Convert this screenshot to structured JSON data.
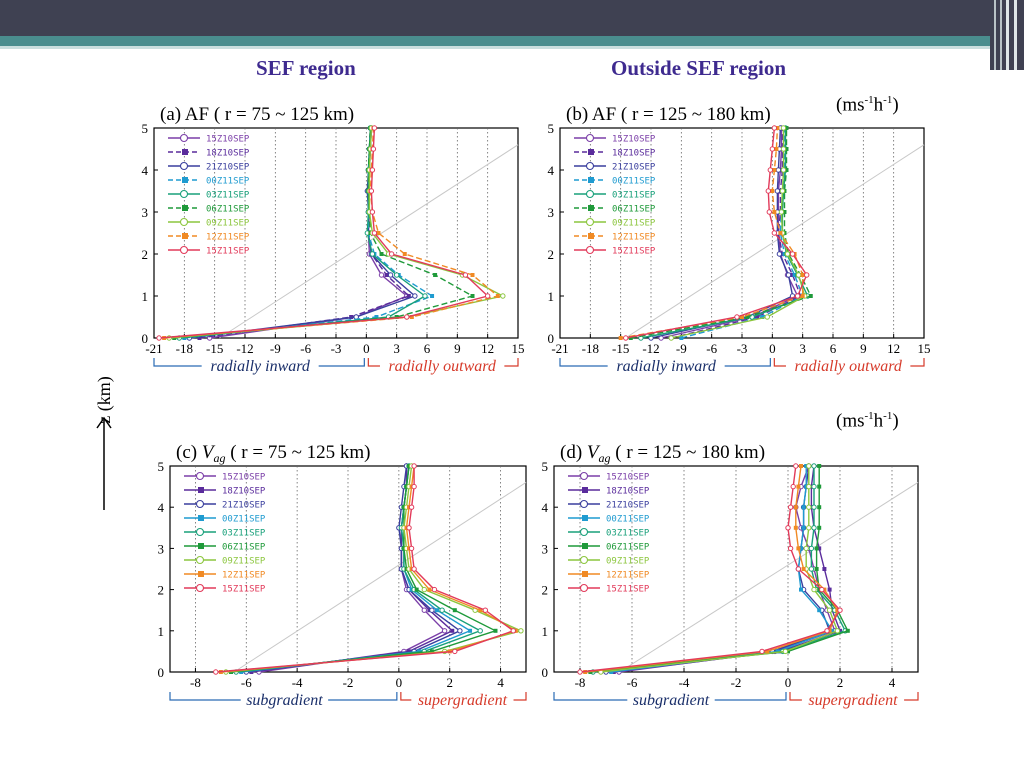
{
  "slide": {
    "heading_left": "SEF  region",
    "heading_right": "Outside SEF region",
    "unit_label": "(ms",
    "unit_exp1": "-1",
    "unit_mid": "h",
    "unit_exp2": "-1",
    "unit_close": ")",
    "z_axis_label": "z (km)"
  },
  "colors": {
    "topbar": "#3f4152",
    "accent": "#4a8d8e",
    "heading": "#3e2a8f",
    "inward_bracket": "#2a6bb5",
    "outward_bracket": "#d63a2a"
  },
  "chart_data": [
    {
      "id": "a",
      "type": "line",
      "title_prefix": "(a) AF ( r = 75 ~ 125 km)",
      "xlim": [
        -21,
        15
      ],
      "ylim": [
        0,
        5
      ],
      "xticks": [
        "-21",
        "-18",
        "-15",
        "-12",
        "-9",
        "-6",
        "-3",
        "0",
        "3",
        "6",
        "9",
        "12",
        "15"
      ],
      "yticks": [
        "0",
        "1",
        "2",
        "3",
        "4",
        "5"
      ],
      "bracket_left": "radially inward",
      "bracket_right": "radially outward",
      "y": [
        0,
        0.5,
        1,
        1.5,
        2,
        2.5,
        3,
        3.5,
        4,
        4.5,
        5
      ],
      "series": [
        {
          "name": "15Z10SEP",
          "color": "#7b3fa8",
          "marker": "circle-open",
          "dash": false,
          "x": [
            -15.5,
            -1,
            4,
            1.5,
            0.3,
            0.2,
            0.3,
            0.2,
            0.3,
            0.4,
            0.5
          ]
        },
        {
          "name": "18Z10SEP",
          "color": "#5a2c9c",
          "marker": "square",
          "dash": true,
          "x": [
            -16.5,
            -1.5,
            4.2,
            2,
            0.5,
            0.2,
            0.2,
            0.2,
            0.3,
            0.4,
            0.5
          ]
        },
        {
          "name": "21Z10SEP",
          "color": "#3a3f9e",
          "marker": "circle-open",
          "dash": false,
          "x": [
            -17.5,
            -1,
            4.8,
            2.4,
            0.5,
            0.2,
            0.2,
            0.1,
            0.2,
            0.3,
            0.4
          ]
        },
        {
          "name": "00Z11SEP",
          "color": "#1f9bd0",
          "marker": "square",
          "dash": true,
          "x": [
            -18,
            1,
            6.5,
            3.2,
            0.8,
            0.2,
            0.2,
            0.2,
            0.2,
            0.3,
            0.4
          ]
        },
        {
          "name": "03Z11SEP",
          "color": "#18a07a",
          "marker": "circle-open",
          "dash": false,
          "x": [
            -18.5,
            2.2,
            5.8,
            3,
            0.6,
            0.1,
            0.2,
            0.2,
            0.2,
            0.3,
            0.4
          ]
        },
        {
          "name": "06Z11SEP",
          "color": "#1f9a3a",
          "marker": "square",
          "dash": true,
          "x": [
            -19,
            3,
            10.5,
            6.8,
            1.5,
            0.4,
            0.3,
            0.2,
            0.2,
            0.3,
            0.4
          ]
        },
        {
          "name": "09Z11SEP",
          "color": "#8cc63e",
          "marker": "circle-open",
          "dash": false,
          "x": [
            -19.5,
            4,
            13.5,
            9.5,
            2.2,
            0.6,
            0.3,
            0.3,
            0.3,
            0.4,
            0.5
          ]
        },
        {
          "name": "12Z11SEP",
          "color": "#f08a24",
          "marker": "square",
          "dash": true,
          "x": [
            -20,
            4.5,
            13,
            10.5,
            3.8,
            1.2,
            0.6,
            0.4,
            0.5,
            0.6,
            0.7
          ]
        },
        {
          "name": "15Z11SEP",
          "color": "#e23a5a",
          "marker": "circle-open",
          "dash": false,
          "x": [
            -20.5,
            4,
            12,
            9.8,
            2.5,
            0.8,
            0.6,
            0.5,
            0.6,
            0.7,
            0.8
          ]
        }
      ]
    },
    {
      "id": "b",
      "type": "line",
      "title_prefix": "(b) AF ( r = 125 ~ 180 km)",
      "xlim": [
        -21,
        15
      ],
      "ylim": [
        0,
        5
      ],
      "xticks": [
        "-21",
        "-18",
        "-15",
        "-12",
        "-9",
        "-6",
        "-3",
        "0",
        "3",
        "6",
        "9",
        "12",
        "15"
      ],
      "yticks": [
        "0",
        "1",
        "2",
        "3",
        "4",
        "5"
      ],
      "bracket_left": "radially inward",
      "bracket_right": "radially outward",
      "y": [
        0,
        0.5,
        1,
        1.5,
        2,
        2.5,
        3,
        3.5,
        4,
        4.5,
        5
      ],
      "series": [
        {
          "name": "15Z10SEP",
          "color": "#7b3fa8",
          "marker": "circle-open",
          "dash": false,
          "x": [
            -11,
            -2,
            2.5,
            1.5,
            0.8,
            0.6,
            0.6,
            0.6,
            0.8,
            0.9,
            0.9
          ]
        },
        {
          "name": "18Z10SEP",
          "color": "#5a2c9c",
          "marker": "square",
          "dash": true,
          "x": [
            -10,
            -1.5,
            2.8,
            2,
            1,
            0.6,
            0.8,
            0.8,
            1,
            1,
            1
          ]
        },
        {
          "name": "21Z10SEP",
          "color": "#3a3f9e",
          "marker": "circle-open",
          "dash": false,
          "x": [
            -12,
            -2.5,
            2,
            1.6,
            0.7,
            0.5,
            0.5,
            0.5,
            0.6,
            0.7,
            0.8
          ]
        },
        {
          "name": "00Z11SEP",
          "color": "#1f9bd0",
          "marker": "square",
          "dash": true,
          "x": [
            -9,
            -1,
            3,
            2.2,
            1.2,
            0.8,
            0.9,
            1,
            1.2,
            1.2,
            1.2
          ]
        },
        {
          "name": "03Z11SEP",
          "color": "#18a07a",
          "marker": "circle-open",
          "dash": false,
          "x": [
            -13,
            -2,
            3.5,
            2.5,
            1.4,
            1,
            1,
            1.1,
            1.3,
            1.3,
            1.3
          ]
        },
        {
          "name": "06Z11SEP",
          "color": "#1f9a3a",
          "marker": "square",
          "dash": true,
          "x": [
            -14,
            -2.5,
            3.8,
            2.8,
            1.6,
            1.2,
            1.2,
            1.2,
            1.4,
            1.4,
            1.4
          ]
        },
        {
          "name": "09Z11SEP",
          "color": "#8cc63e",
          "marker": "circle-open",
          "dash": false,
          "x": [
            -10,
            -0.5,
            3.2,
            2.6,
            1.5,
            1,
            0.9,
            1,
            1.1,
            1.1,
            1.1
          ]
        },
        {
          "name": "12Z11SEP",
          "color": "#f08a24",
          "marker": "square",
          "dash": true,
          "x": [
            -15,
            -3,
            3,
            3,
            2.2,
            0.8,
            0.2,
            0,
            0.2,
            0.4,
            0.5
          ]
        },
        {
          "name": "15Z11SEP",
          "color": "#e23a5a",
          "marker": "circle-open",
          "dash": false,
          "x": [
            -14.5,
            -3.5,
            2.5,
            3.4,
            2,
            0.2,
            -0.3,
            -0.4,
            -0.2,
            0,
            0.2
          ]
        }
      ]
    },
    {
      "id": "c",
      "type": "line",
      "title_prefix": "(c) ",
      "title_var": "V",
      "title_sub": "ag",
      "title_suffix": "  ( r = 75 ~ 125 km)",
      "xlim": [
        -9,
        5
      ],
      "ylim": [
        0,
        5
      ],
      "xticks": [
        "-8",
        "-6",
        "-4",
        "-2",
        "0",
        "2",
        "4"
      ],
      "xtick_values": [
        -8,
        -6,
        -4,
        -2,
        0,
        2,
        4
      ],
      "yticks": [
        "0",
        "1",
        "2",
        "3",
        "4",
        "5"
      ],
      "bracket_left": "subgradient",
      "bracket_right": "supergradient",
      "y": [
        0,
        0.5,
        1,
        1.5,
        2,
        2.5,
        3,
        3.5,
        4,
        4.5,
        5
      ],
      "series": [
        {
          "name": "15Z10SEP",
          "color": "#7b3fa8",
          "marker": "circle-open",
          "dash": false,
          "x": [
            -5.5,
            0.2,
            1.8,
            1,
            0.3,
            0.1,
            0.1,
            0.1,
            0.2,
            0.3,
            0.3
          ]
        },
        {
          "name": "18Z10SEP",
          "color": "#5a2c9c",
          "marker": "square",
          "dash": false,
          "x": [
            -5.8,
            0.4,
            2.1,
            1.2,
            0.4,
            0.1,
            0.1,
            0.1,
            0.2,
            0.3,
            0.3
          ]
        },
        {
          "name": "21Z10SEP",
          "color": "#3a3f9e",
          "marker": "circle-open",
          "dash": false,
          "x": [
            -6,
            0.6,
            2.4,
            1.3,
            0.4,
            0.1,
            0.1,
            0,
            0.1,
            0.2,
            0.3
          ]
        },
        {
          "name": "00Z11SEP",
          "color": "#1f9bd0",
          "marker": "square",
          "dash": false,
          "x": [
            -6.2,
            0.8,
            2.8,
            1.5,
            0.5,
            0.2,
            0.2,
            0.1,
            0.2,
            0.3,
            0.4
          ]
        },
        {
          "name": "03Z11SEP",
          "color": "#18a07a",
          "marker": "circle-open",
          "dash": false,
          "x": [
            -6.4,
            1,
            3.2,
            1.7,
            0.6,
            0.2,
            0.2,
            0.1,
            0.2,
            0.3,
            0.4
          ]
        },
        {
          "name": "06Z11SEP",
          "color": "#1f9a3a",
          "marker": "square",
          "dash": false,
          "x": [
            -6.6,
            1.3,
            3.8,
            2.2,
            0.7,
            0.3,
            0.2,
            0.2,
            0.2,
            0.3,
            0.4
          ]
        },
        {
          "name": "09Z11SEP",
          "color": "#8cc63e",
          "marker": "circle-open",
          "dash": false,
          "x": [
            -6.8,
            1.8,
            4.8,
            3,
            1,
            0.4,
            0.3,
            0.2,
            0.3,
            0.4,
            0.5
          ]
        },
        {
          "name": "12Z11SEP",
          "color": "#f08a24",
          "marker": "square",
          "dash": false,
          "x": [
            -7,
            2,
            4.6,
            3.2,
            1.2,
            0.5,
            0.4,
            0.3,
            0.4,
            0.5,
            0.6
          ]
        },
        {
          "name": "15Z11SEP",
          "color": "#e23a5a",
          "marker": "circle-open",
          "dash": false,
          "x": [
            -7.2,
            2.2,
            4.5,
            3.4,
            1.4,
            0.6,
            0.5,
            0.4,
            0.5,
            0.6,
            0.6
          ]
        }
      ]
    },
    {
      "id": "d",
      "type": "line",
      "title_prefix": "(d) ",
      "title_var": "V",
      "title_sub": "ag",
      "title_suffix": "  ( r = 125 ~ 180 km)",
      "xlim": [
        -9,
        5
      ],
      "ylim": [
        0,
        5
      ],
      "xticks": [
        "-8",
        "-6",
        "-4",
        "-2",
        "0",
        "2",
        "4"
      ],
      "xtick_values": [
        -8,
        -6,
        -4,
        -2,
        0,
        2,
        4
      ],
      "yticks": [
        "0",
        "1",
        "2",
        "3",
        "4",
        "5"
      ],
      "bracket_left": "subgradient",
      "bracket_right": "supergradient",
      "y": [
        0,
        0.5,
        1,
        1.5,
        2,
        2.5,
        3,
        3.5,
        4,
        4.5,
        5
      ],
      "series": [
        {
          "name": "15Z10SEP",
          "color": "#7b3fa8",
          "marker": "circle-open",
          "dash": false,
          "x": [
            -6.5,
            -0.5,
            1.8,
            1.5,
            1.2,
            1,
            0.8,
            0.5,
            0.3,
            0.5,
            0.8
          ]
        },
        {
          "name": "18Z10SEP",
          "color": "#5a2c9c",
          "marker": "square",
          "dash": false,
          "x": [
            -6.7,
            -0.3,
            2,
            1.7,
            1.6,
            1.4,
            1.2,
            1,
            0.9,
            0.9,
            1
          ]
        },
        {
          "name": "21Z10SEP",
          "color": "#3a3f9e",
          "marker": "circle-open",
          "dash": false,
          "x": [
            -7,
            -0.6,
            1.6,
            1.3,
            0.6,
            0.4,
            0.5,
            0.6,
            0.6,
            0.7,
            0.8
          ]
        },
        {
          "name": "00Z11SEP",
          "color": "#1f9bd0",
          "marker": "square",
          "dash": false,
          "x": [
            -6.8,
            -0.4,
            1.7,
            1.2,
            0.5,
            0.4,
            0.5,
            0.6,
            0.6,
            0.7,
            0.7
          ]
        },
        {
          "name": "03Z11SEP",
          "color": "#18a07a",
          "marker": "circle-open",
          "dash": false,
          "x": [
            -7.5,
            -0.2,
            2.2,
            1.8,
            1.1,
            0.9,
            0.9,
            1,
            1,
            1,
            1
          ]
        },
        {
          "name": "06Z11SEP",
          "color": "#1f9a3a",
          "marker": "square",
          "dash": false,
          "x": [
            -7.6,
            0,
            2.3,
            1.9,
            1.2,
            1.1,
            1.1,
            1.2,
            1.2,
            1.2,
            1.2
          ]
        },
        {
          "name": "09Z11SEP",
          "color": "#8cc63e",
          "marker": "circle-open",
          "dash": false,
          "x": [
            -7.2,
            -0.1,
            1.9,
            1.6,
            1,
            0.7,
            0.7,
            0.8,
            0.8,
            0.8,
            0.8
          ]
        },
        {
          "name": "12Z11SEP",
          "color": "#f08a24",
          "marker": "square",
          "dash": false,
          "x": [
            -7.8,
            -0.8,
            1.6,
            1.9,
            1.4,
            0.6,
            0.4,
            0.3,
            0.3,
            0.4,
            0.5
          ]
        },
        {
          "name": "15Z11SEP",
          "color": "#e23a5a",
          "marker": "circle-open",
          "dash": false,
          "x": [
            -8,
            -1,
            1.5,
            2,
            1.3,
            0.4,
            0.1,
            0,
            0.1,
            0.2,
            0.3
          ]
        }
      ]
    }
  ]
}
